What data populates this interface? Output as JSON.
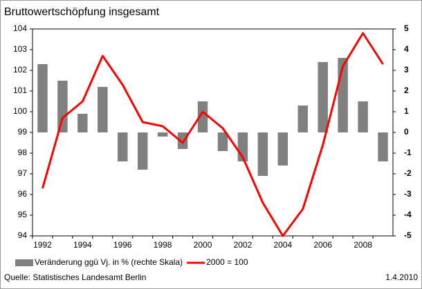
{
  "chart_data": {
    "type": "bar_line",
    "title": "Bruttowertschöpfung insgesamt",
    "categories": [
      "1992",
      null,
      "1994",
      null,
      "1996",
      null,
      "1998",
      null,
      "2000",
      null,
      "2002",
      null,
      "2004",
      null,
      "2006",
      null,
      "2008",
      null
    ],
    "series": [
      {
        "name": "Veränderung ggü Vj. in % (rechte Skala)",
        "type": "bar",
        "axis": "y2",
        "color": "#808080",
        "values": [
          3.3,
          2.5,
          0.9,
          2.2,
          -1.4,
          -1.8,
          -0.2,
          -0.8,
          1.5,
          -0.9,
          -1.4,
          -2.1,
          -1.6,
          1.3,
          3.4,
          3.6,
          1.5,
          -1.4
        ]
      },
      {
        "name": "2000 = 100",
        "type": "line",
        "axis": "y",
        "color": "#ff0000",
        "values": [
          96.3,
          99.7,
          100.5,
          102.7,
          101.3,
          99.5,
          99.3,
          98.5,
          100.0,
          99.2,
          97.8,
          95.6,
          94.0,
          95.3,
          98.4,
          102.2,
          103.8,
          102.3
        ]
      }
    ],
    "ylim": [
      94,
      104
    ],
    "yticks": [
      94,
      95,
      96,
      97,
      98,
      99,
      100,
      101,
      102,
      103,
      104
    ],
    "y2lim": [
      -5,
      5
    ],
    "y2ticks": [
      -5,
      -4,
      -3,
      -2,
      -1,
      0,
      1,
      2,
      3,
      4,
      5
    ],
    "source": "Quelle: Statistisches Landesamt Berlin",
    "date": "1.4.2010"
  }
}
